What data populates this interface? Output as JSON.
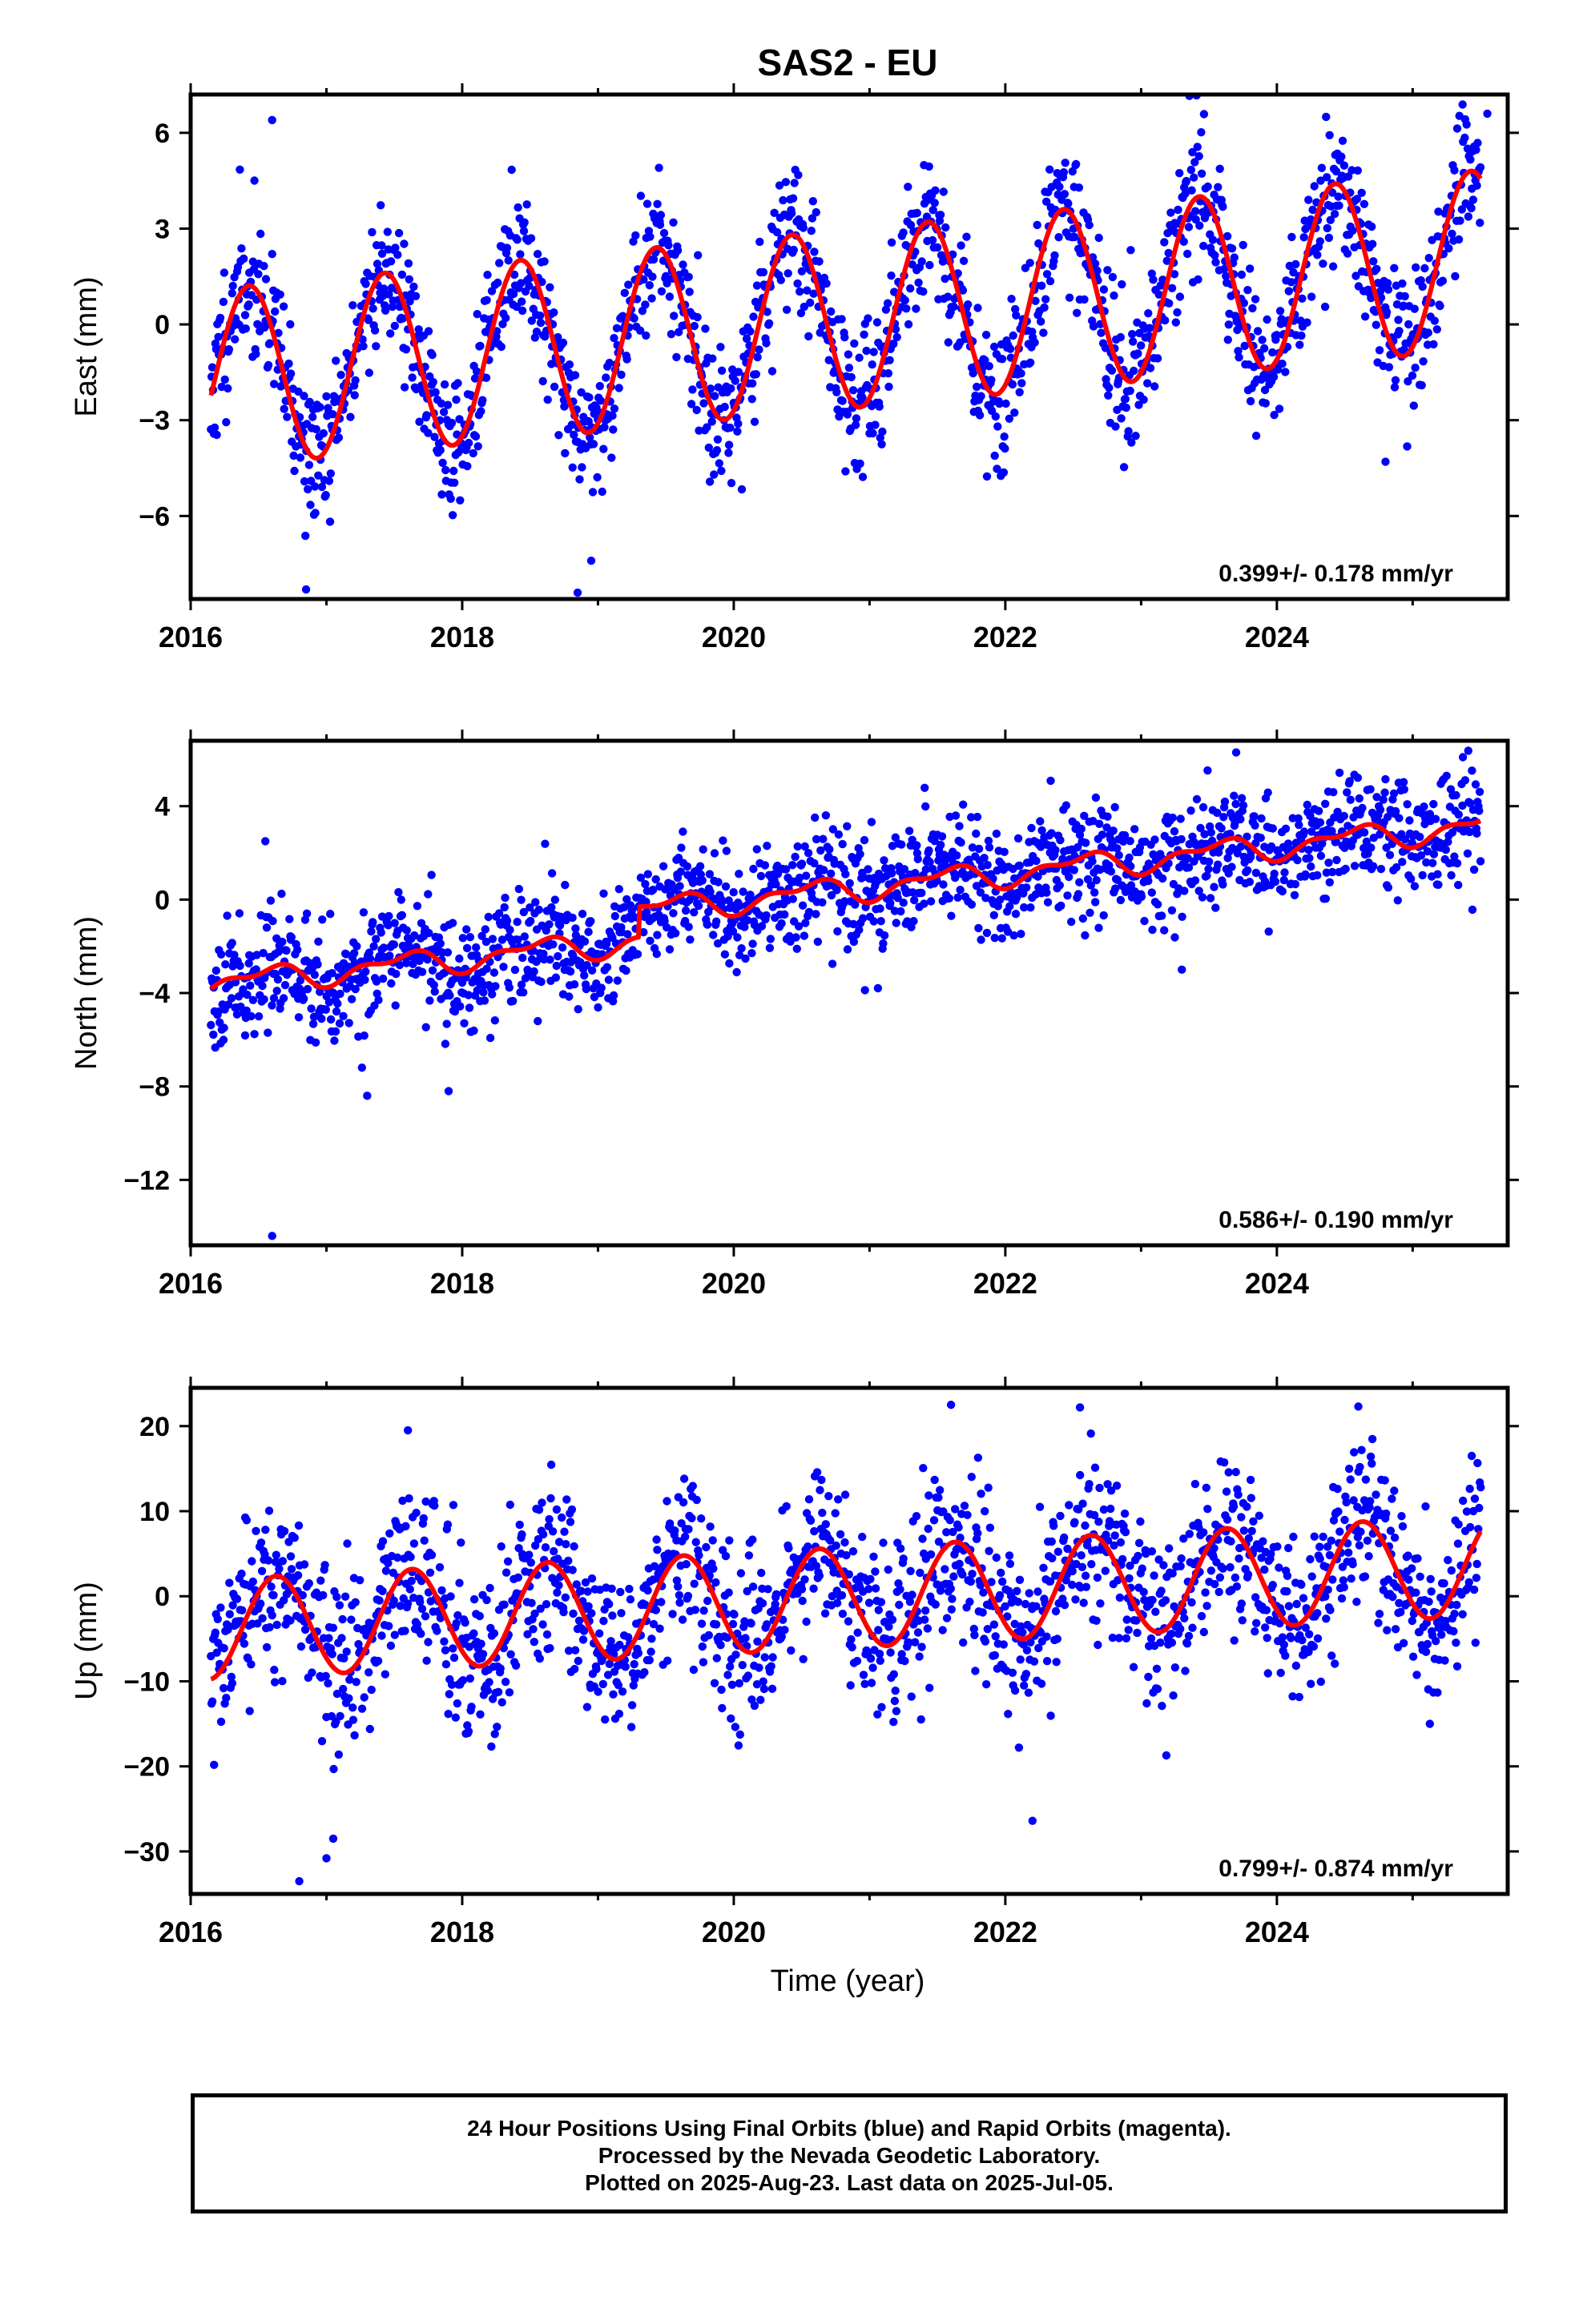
{
  "title": "SAS2 - EU",
  "x_axis_label": "Time (year)",
  "footer": {
    "line1": "24 Hour Positions Using Final Orbits (blue) and Rapid Orbits (magenta).",
    "line2": "Processed by the Nevada Geodetic Laboratory.",
    "line3": "Plotted on 2025-Aug-23. Last data on 2025-Jul-05."
  },
  "colors": {
    "points": "#0000ff",
    "model": "#ff0000",
    "frame": "#000000"
  },
  "chart_data": [
    {
      "type": "scatter",
      "ylabel": "East (mm)",
      "xlim": [
        2016.0,
        2025.7
      ],
      "ylim": [
        -8.6,
        7.2
      ],
      "xticks": [
        2016,
        2018,
        2020,
        2022,
        2024
      ],
      "yticks": [
        6,
        3,
        0,
        -3,
        -6
      ],
      "rate_label": "0.399+/- 0.178 mm/yr",
      "grid": false,
      "series": [
        {
          "model": {
            "t0": 2016.15,
            "t1": 2025.5,
            "a0": -1.7,
            "rate": 0.399,
            "amp": 2.8,
            "phase": 0.18,
            "amp2": 0.0,
            "phase2": 0.0,
            "step_time": 2019.3,
            "step": 0.0
          },
          "scatter": 1.1,
          "n_points": 1750,
          "seed": 11,
          "outliers": [
            [
              2016.6,
              6.4
            ],
            [
              2016.85,
              -8.3
            ],
            [
              2018.85,
              -8.4
            ],
            [
              2018.95,
              -7.4
            ],
            [
              2024.8,
              -4.3
            ],
            [
              2025.55,
              6.6
            ]
          ]
        }
      ]
    },
    {
      "type": "scatter",
      "ylabel": "North (mm)",
      "xlim": [
        2016.0,
        2025.7
      ],
      "ylim": [
        -14.8,
        6.8
      ],
      "xticks": [
        2016,
        2018,
        2020,
        2022,
        2024
      ],
      "yticks": [
        4,
        0,
        -4,
        -8,
        -12
      ],
      "rate_label": "0.586+/- 0.190 mm/yr",
      "grid": false,
      "series": [
        {
          "model": {
            "t0": 2016.15,
            "t1": 2025.5,
            "a0": -3.6,
            "rate": 0.586,
            "amp": 0.45,
            "phase": 0.3,
            "amp2": 0.25,
            "phase2": 0.1,
            "step_time": 2019.3,
            "step": 1.3
          },
          "scatter": 1.2,
          "n_points": 1750,
          "seed": 23,
          "outliers": [
            [
              2016.6,
              -14.4
            ],
            [
              2017.3,
              -8.4
            ],
            [
              2017.9,
              -8.2
            ],
            [
              2016.55,
              2.5
            ],
            [
              2023.7,
              6.3
            ],
            [
              2023.3,
              -3.0
            ]
          ]
        }
      ]
    },
    {
      "type": "scatter",
      "ylabel": "Up (mm)",
      "xlim": [
        2016.0,
        2025.7
      ],
      "ylim": [
        -35.0,
        24.5
      ],
      "xticks": [
        2016,
        2018,
        2020,
        2022,
        2024
      ],
      "yticks": [
        20,
        10,
        0,
        -10,
        -20,
        -30
      ],
      "rate_label": "0.799+/- 0.874 mm/yr",
      "grid": false,
      "series": [
        {
          "model": {
            "t0": 2016.15,
            "t1": 2025.5,
            "a0": -3.9,
            "rate": 0.799,
            "amp": 5.9,
            "phase": 0.38,
            "amp2": 0.0,
            "phase2": 0.0,
            "step_time": 2019.3,
            "step": 0.0
          },
          "scatter": 5.0,
          "n_points": 1750,
          "seed": 37,
          "outliers": [
            [
              2016.8,
              -33.5
            ],
            [
              2017.0,
              -30.8
            ],
            [
              2017.05,
              -28.5
            ],
            [
              2021.6,
              22.5
            ],
            [
              2022.55,
              22.2
            ],
            [
              2024.6,
              22.3
            ],
            [
              2022.2,
              -26.4
            ],
            [
              2017.6,
              19.5
            ]
          ]
        }
      ]
    }
  ]
}
